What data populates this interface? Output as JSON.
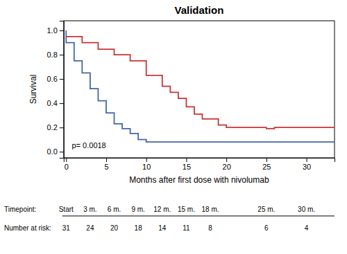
{
  "chart_data": {
    "type": "step",
    "title": "Validation",
    "x_label": "Months after first dose with nivolumab",
    "y_label": "Survival",
    "xlim": [
      -0.3,
      33.5
    ],
    "ylim": [
      -0.05,
      1.08
    ],
    "xticks": [
      0,
      5,
      10,
      15,
      20,
      25,
      30
    ],
    "yticks": [
      {
        "value": 0.0,
        "label": "0.0"
      },
      {
        "value": 0.2,
        "label": "0.2"
      },
      {
        "value": 0.4,
        "label": "0.4"
      },
      {
        "value": 0.6,
        "label": "0.6"
      },
      {
        "value": 0.8,
        "label": "0.8"
      },
      {
        "value": 1.0,
        "label": "1.0"
      }
    ],
    "grid": false,
    "series": [
      {
        "color": "#4466AA",
        "x": [
          0,
          0,
          1,
          1,
          2,
          2,
          3,
          3,
          4,
          4,
          5,
          5,
          6,
          6,
          7,
          7,
          8,
          8,
          9,
          9,
          10,
          10,
          33.5
        ],
        "values": [
          1.0,
          0.9,
          0.9,
          0.75,
          0.75,
          0.65,
          0.65,
          0.52,
          0.52,
          0.42,
          0.42,
          0.32,
          0.32,
          0.23,
          0.23,
          0.19,
          0.19,
          0.15,
          0.15,
          0.1,
          0.1,
          0.08,
          0.08
        ]
      },
      {
        "color": "#CC3333",
        "x": [
          0,
          2,
          2,
          4,
          4,
          6,
          6,
          8,
          8,
          10,
          10,
          12,
          12,
          13,
          13,
          14,
          14,
          15,
          15,
          16,
          16,
          17,
          17,
          19,
          19,
          20,
          20,
          25,
          25,
          26,
          26,
          33.5
        ],
        "values": [
          0.95,
          0.95,
          0.9,
          0.9,
          0.845,
          0.845,
          0.8,
          0.8,
          0.75,
          0.75,
          0.63,
          0.63,
          0.54,
          0.54,
          0.49,
          0.49,
          0.44,
          0.44,
          0.37,
          0.37,
          0.31,
          0.31,
          0.27,
          0.27,
          0.22,
          0.22,
          0.2,
          0.2,
          0.19,
          0.19,
          0.2,
          0.2
        ]
      }
    ],
    "annotations": [
      {
        "text": "p= 0.0018"
      }
    ],
    "risk_table": {
      "label_timepoint": "Timepoint:",
      "label_number": "Number at risk:",
      "timepoints": [
        "Start",
        "3 m.",
        "6 m.",
        "9 m.",
        "12 m.",
        "15 m.",
        "18 m.",
        "25 m.",
        "30 m."
      ],
      "x": [
        0,
        3,
        6,
        9,
        12,
        15,
        18,
        25,
        30
      ],
      "numbers": [
        31,
        24,
        20,
        18,
        14,
        11,
        8,
        6,
        4
      ]
    }
  }
}
